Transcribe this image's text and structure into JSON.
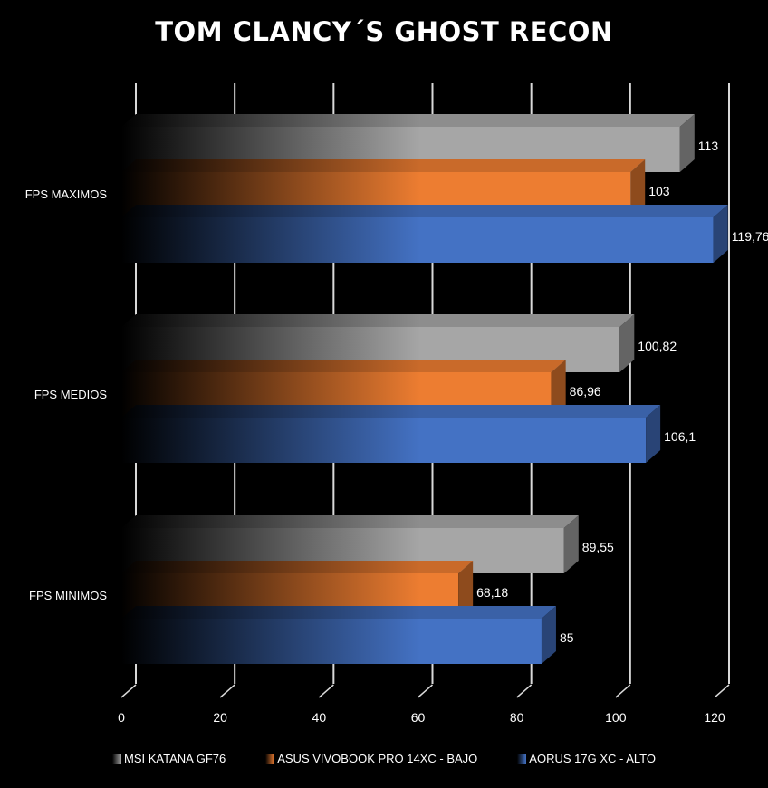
{
  "title": "TOM CLANCY´S GHOST RECON",
  "chart_data": {
    "type": "bar",
    "orientation": "horizontal",
    "style": "3d-gradient",
    "categories": [
      "FPS MAXIMOS",
      "FPS MEDIOS",
      "FPS MINIMOS"
    ],
    "series": [
      {
        "name": "MSI KATANA GF76",
        "color": "#a6a6a6",
        "values": [
          113,
          100.82,
          89.55
        ],
        "labels": [
          "113",
          "100,82",
          "89,55"
        ]
      },
      {
        "name": "ASUS VIVOBOOK PRO 14XC - BAJO",
        "color": "#ed7d31",
        "values": [
          103,
          86.96,
          68.18
        ],
        "labels": [
          "103",
          "86,96",
          "68,18"
        ]
      },
      {
        "name": "AORUS 17G XC - ALTO",
        "color": "#4472c4",
        "values": [
          119.76,
          106.1,
          85
        ],
        "labels": [
          "119,76",
          "106,1",
          "85"
        ]
      }
    ],
    "xlim": [
      0,
      120
    ],
    "xticks": [
      "0",
      "20",
      "40",
      "60",
      "80",
      "100",
      "120"
    ],
    "grid": true,
    "legend_position": "bottom"
  }
}
